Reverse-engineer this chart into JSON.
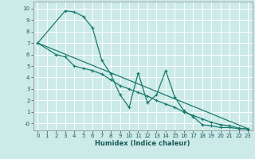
{
  "title": "",
  "xlabel": "Humidex (Indice chaleur)",
  "bg_color": "#cceae8",
  "grid_color": "#ffffff",
  "line_color": "#1a7a6e",
  "xlim": [
    -0.5,
    23.5
  ],
  "ylim": [
    -0.6,
    10.6
  ],
  "xticks": [
    0,
    1,
    2,
    3,
    4,
    5,
    6,
    7,
    8,
    9,
    10,
    11,
    12,
    13,
    14,
    15,
    16,
    17,
    18,
    19,
    20,
    21,
    22,
    23
  ],
  "yticks": [
    0,
    1,
    2,
    3,
    4,
    5,
    6,
    7,
    8,
    9,
    10
  ],
  "ytick_labels": [
    "-0",
    "1",
    "2",
    "3",
    "4",
    "5",
    "6",
    "7",
    "8",
    "9",
    "10"
  ],
  "line1_x": [
    0,
    3,
    4,
    5,
    6,
    7,
    8,
    9,
    10,
    11,
    12,
    13,
    14,
    15,
    16,
    17,
    18,
    19,
    20,
    21,
    22,
    23
  ],
  "line1_y": [
    7.0,
    9.8,
    9.7,
    9.3,
    8.3,
    5.5,
    4.3,
    2.5,
    1.4,
    4.4,
    1.8,
    2.5,
    4.6,
    2.3,
    1.1,
    0.6,
    -0.1,
    -0.2,
    -0.35,
    -0.35,
    -0.45,
    -0.45
  ],
  "line2_x": [
    0,
    2,
    3,
    4,
    5,
    6,
    7,
    8,
    9,
    10,
    11,
    12,
    13,
    14,
    15,
    16,
    17,
    18,
    19,
    20,
    21,
    22,
    23
  ],
  "line2_y": [
    7.0,
    6.0,
    5.8,
    5.0,
    4.8,
    4.6,
    4.3,
    3.8,
    3.3,
    3.0,
    2.7,
    2.4,
    2.0,
    1.7,
    1.4,
    1.0,
    0.7,
    0.4,
    0.1,
    -0.1,
    -0.2,
    -0.4,
    -0.5
  ],
  "line3_x": [
    0,
    23
  ],
  "line3_y": [
    7.0,
    -0.45
  ]
}
